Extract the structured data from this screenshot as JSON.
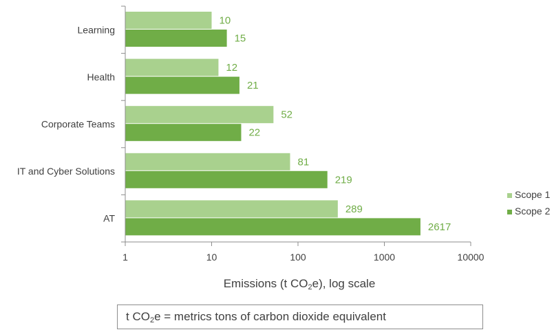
{
  "chart_data": {
    "type": "bar",
    "orientation": "horizontal",
    "x_scale": "log",
    "xlim": [
      1,
      10000
    ],
    "x_ticks": [
      "1",
      "10",
      "100",
      "1000",
      "10000"
    ],
    "categories": [
      "Learning",
      "Health",
      "Corporate Teams",
      "IT and Cyber Solutions",
      "AT"
    ],
    "series": [
      {
        "name": "Scope 1",
        "color": "#a9d18e",
        "values": [
          10,
          12,
          52,
          81,
          289
        ]
      },
      {
        "name": "Scope 2",
        "color": "#70ad47",
        "values": [
          15,
          21,
          22,
          219,
          2617
        ]
      }
    ],
    "label_color": "#70ad47",
    "xlabel": {
      "pre": "Emissions (t CO",
      "sub": "2",
      "post": "e), log scale"
    },
    "legend_position": "right",
    "grid": false
  },
  "note": {
    "pre": "t CO",
    "sub": "2",
    "post": "e = metrics tons of carbon dioxide equivalent"
  }
}
